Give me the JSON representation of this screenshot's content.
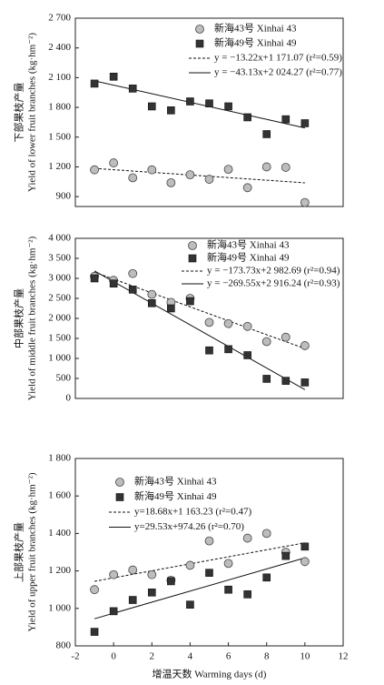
{
  "chart_data": [
    {
      "type": "scatter",
      "ylabel": [
        "下部果枝产量",
        "Yield of lower fruit branches (kg·hm⁻²)"
      ],
      "x": [
        -1,
        0,
        1,
        2,
        3,
        4,
        5,
        6,
        7,
        8,
        9,
        10
      ],
      "xlim": [
        -2,
        12
      ],
      "ylim": [
        800,
        2700
      ],
      "yticks": [
        900,
        {
          "value": 1200,
          "label": "1 200"
        },
        {
          "value": 1500,
          "label": "1 500"
        },
        {
          "value": 1800,
          "label": "1 800"
        },
        {
          "value": 2100,
          "label": "2 100"
        },
        {
          "value": 2400,
          "label": "2 400"
        },
        {
          "value": 2700,
          "label": "2 700"
        }
      ],
      "series": [
        {
          "name": "新海43号 Xinhai 43",
          "marker": "circle",
          "color": "#bdbdbd",
          "values": [
            1170,
            1240,
            1090,
            1170,
            1040,
            1120,
            1075,
            1175,
            990,
            1200,
            1195,
            840
          ]
        },
        {
          "name": "新海49号 Xinhai 49",
          "marker": "square",
          "color": "#333333",
          "values": [
            2040,
            2110,
            1990,
            1810,
            1770,
            1860,
            1840,
            1810,
            1700,
            1530,
            1680,
            1640
          ]
        }
      ],
      "fits": [
        {
          "label": "y = −13.22x+1 171.07 (r²=0.59)",
          "slope": -13.22,
          "intercept": 1171.07,
          "dashed": true
        },
        {
          "label": "y = −43.13x+2 024.27 (r²=0.77)",
          "slope": -43.13,
          "intercept": 2024.27,
          "dashed": false
        }
      ]
    },
    {
      "type": "scatter",
      "ylabel": [
        "中部果枝产量",
        "Yield of middle fruit branches (kg·hm⁻²)"
      ],
      "x": [
        -1,
        0,
        1,
        2,
        3,
        4,
        5,
        6,
        7,
        8,
        9,
        10
      ],
      "xlim": [
        -2,
        12
      ],
      "ylim": [
        0,
        4000
      ],
      "yticks": [
        0,
        500,
        {
          "value": 1000,
          "label": "1 000"
        },
        {
          "value": 1500,
          "label": "1 500"
        },
        {
          "value": 2000,
          "label": "2 000"
        },
        {
          "value": 2500,
          "label": "2 500"
        },
        {
          "value": 3000,
          "label": "3 000"
        },
        {
          "value": 3500,
          "label": "3 500"
        },
        {
          "value": 4000,
          "label": "4 000"
        }
      ],
      "series": [
        {
          "name": "新海43号 Xinhai 43",
          "marker": "circle",
          "color": "#bdbdbd",
          "values": [
            3050,
            2950,
            3120,
            2600,
            2400,
            2500,
            1900,
            1870,
            1800,
            1420,
            1530,
            1320
          ]
        },
        {
          "name": "新海49号 Xinhai 49",
          "marker": "square",
          "color": "#333333",
          "values": [
            3000,
            2870,
            2720,
            2380,
            2250,
            2430,
            1200,
            1230,
            1080,
            490,
            440,
            400
          ]
        }
      ],
      "fits": [
        {
          "label": "y = −173.73x+2 982.69 (r²=0.94)",
          "slope": -173.73,
          "intercept": 2982.69,
          "dashed": true
        },
        {
          "label": "y = −269.55x+2 916.24 (r²=0.93)",
          "slope": -269.55,
          "intercept": 2916.24,
          "dashed": false
        }
      ]
    },
    {
      "type": "scatter",
      "ylabel": [
        "上部果枝产量",
        "Yield of upper fruit branches (kg·hm⁻²)"
      ],
      "xlabel": "增温天数 Warming days (d)",
      "x": [
        -1,
        0,
        1,
        2,
        3,
        4,
        5,
        6,
        7,
        8,
        9,
        10
      ],
      "xlim": [
        -2,
        12
      ],
      "xticks": [
        -2,
        0,
        2,
        4,
        6,
        8,
        10,
        12
      ],
      "ylim": [
        800,
        1800
      ],
      "yticks": [
        800,
        {
          "value": 1000,
          "label": "1 000"
        },
        {
          "value": 1200,
          "label": "1 200"
        },
        {
          "value": 1400,
          "label": "1 400"
        },
        {
          "value": 1600,
          "label": "1 600"
        },
        {
          "value": 1800,
          "label": "1 800"
        }
      ],
      "series": [
        {
          "name": "新海43号 Xinhai 43",
          "marker": "circle",
          "color": "#bdbdbd",
          "values": [
            1100,
            1180,
            1205,
            1180,
            1150,
            1230,
            1360,
            1240,
            1375,
            1400,
            1300,
            1250
          ]
        },
        {
          "name": "新海49号 Xinhai 49",
          "marker": "square",
          "color": "#333333",
          "values": [
            875,
            985,
            1045,
            1085,
            1145,
            1020,
            1190,
            1100,
            1075,
            1165,
            1280,
            1330
          ]
        }
      ],
      "fits": [
        {
          "label": "y=18.68x+1 163.23 (r²=0.47)",
          "slope": 18.68,
          "intercept": 1163.23,
          "dashed": true
        },
        {
          "label": "y=29.53x+974.26 (r²=0.70)",
          "slope": 29.53,
          "intercept": 974.26,
          "dashed": false
        }
      ]
    }
  ]
}
